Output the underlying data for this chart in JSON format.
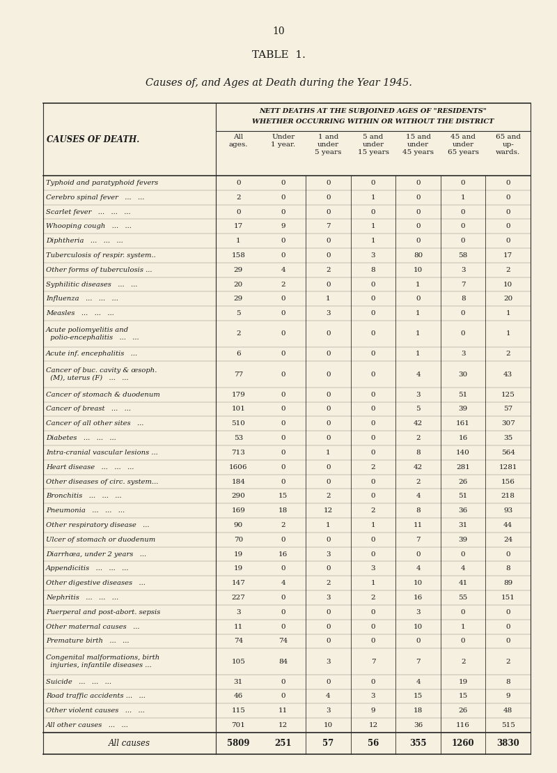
{
  "page_number": "10",
  "table_title": "TABLE  1.",
  "subtitle": "Causes of, and Ages at Death during the Year 1945.",
  "header_line1": "NETT DEATHS AT THE SUBJOINED AGES OF \"RESIDENTS\"",
  "header_line2": "WHETHER OCCURRING WITHIN OR WITHOUT THE DISTRICT",
  "col_header_main": "CAUSES OF DEATH.",
  "col_headers": [
    "All\nages.",
    "Under\n1 year.",
    "1 and\nunder\n5 years",
    "5 and\nunder\n15 years",
    "15 and\nunder\n45 years",
    "45 and\nunder\n65 years",
    "65 and\nup-\nwards."
  ],
  "rows": [
    [
      "Typhoid and paratyphoid fevers",
      "0",
      "0",
      "0",
      "0",
      "0",
      "0",
      "0"
    ],
    [
      "Cerebro spinal fever   ...   ...",
      "2",
      "0",
      "0",
      "1",
      "0",
      "1",
      "0"
    ],
    [
      "Scarlet fever   ...   ...   ...",
      "0",
      "0",
      "0",
      "0",
      "0",
      "0",
      "0"
    ],
    [
      "Whooping cough   ...   ...",
      "17",
      "9",
      "7",
      "1",
      "0",
      "0",
      "0"
    ],
    [
      "Diphtheria   ...   ...   ...",
      "1",
      "0",
      "0",
      "1",
      "0",
      "0",
      "0"
    ],
    [
      "Tuberculosis of respir. system..",
      "158",
      "0",
      "0",
      "3",
      "80",
      "58",
      "17"
    ],
    [
      "Other forms of tuberculosis ...",
      "29",
      "4",
      "2",
      "8",
      "10",
      "3",
      "2"
    ],
    [
      "Syphilitic diseases   ...   ...",
      "20",
      "2",
      "0",
      "0",
      "1",
      "7",
      "10"
    ],
    [
      "Influenza   ...   ...   ...",
      "29",
      "0",
      "1",
      "0",
      "0",
      "8",
      "20"
    ],
    [
      "Measles   ...   ...   ...",
      "5",
      "0",
      "3",
      "0",
      "1",
      "0",
      "1"
    ],
    [
      "Acute poliomyelitis and\n  polio-encephalitis   ...   ...",
      "2",
      "0",
      "0",
      "0",
      "1",
      "0",
      "1"
    ],
    [
      "Acute inf. encephalitis   ...",
      "6",
      "0",
      "0",
      "0",
      "1",
      "3",
      "2"
    ],
    [
      "Cancer of buc. cavity & œsoph.\n  (M), uterus (F)   ...   ...",
      "77",
      "0",
      "0",
      "0",
      "4",
      "30",
      "43"
    ],
    [
      "Cancer of stomach & duodenum",
      "179",
      "0",
      "0",
      "0",
      "3",
      "51",
      "125"
    ],
    [
      "Cancer of breast   ...   ...",
      "101",
      "0",
      "0",
      "0",
      "5",
      "39",
      "57"
    ],
    [
      "Cancer of all other sites   ...",
      "510",
      "0",
      "0",
      "0",
      "42",
      "161",
      "307"
    ],
    [
      "Diabetes   ...   ...   ...",
      "53",
      "0",
      "0",
      "0",
      "2",
      "16",
      "35"
    ],
    [
      "Intra-cranial vascular lesions ...",
      "713",
      "0",
      "1",
      "0",
      "8",
      "140",
      "564"
    ],
    [
      "Heart disease   ...   ...   ...",
      "1606",
      "0",
      "0",
      "2",
      "42",
      "281",
      "1281"
    ],
    [
      "Other diseases of circ. system...",
      "184",
      "0",
      "0",
      "0",
      "2",
      "26",
      "156"
    ],
    [
      "Bronchitis   ...   ...   ...",
      "290",
      "15",
      "2",
      "0",
      "4",
      "51",
      "218"
    ],
    [
      "Pneumonia   ...   ...   ...",
      "169",
      "18",
      "12",
      "2",
      "8",
      "36",
      "93"
    ],
    [
      "Other respiratory disease   ...",
      "90",
      "2",
      "1",
      "1",
      "11",
      "31",
      "44"
    ],
    [
      "Ulcer of stomach or duodenum",
      "70",
      "0",
      "0",
      "0",
      "7",
      "39",
      "24"
    ],
    [
      "Diarrhœa, under 2 years   ...",
      "19",
      "16",
      "3",
      "0",
      "0",
      "0",
      "0"
    ],
    [
      "Appendicitis   ...   ...   ...",
      "19",
      "0",
      "0",
      "3",
      "4",
      "4",
      "8"
    ],
    [
      "Other digestive diseases   ...",
      "147",
      "4",
      "2",
      "1",
      "10",
      "41",
      "89"
    ],
    [
      "Nephritis   ...   ...   ...",
      "227",
      "0",
      "3",
      "2",
      "16",
      "55",
      "151"
    ],
    [
      "Puerperal and post-abort. sepsis",
      "3",
      "0",
      "0",
      "0",
      "3",
      "0",
      "0"
    ],
    [
      "Other maternal causes   ...",
      "11",
      "0",
      "0",
      "0",
      "10",
      "1",
      "0"
    ],
    [
      "Premature birth   ...   ...",
      "74",
      "74",
      "0",
      "0",
      "0",
      "0",
      "0"
    ],
    [
      "Congenital malformations, birth\n  injuries, infantile diseases ...",
      "105",
      "84",
      "3",
      "7",
      "7",
      "2",
      "2"
    ],
    [
      "Suicide   ...   ...   ...",
      "31",
      "0",
      "0",
      "0",
      "4",
      "19",
      "8"
    ],
    [
      "Road traffic accidents ...   ...",
      "46",
      "0",
      "4",
      "3",
      "15",
      "15",
      "9"
    ],
    [
      "Other violent causes   ...   ...",
      "115",
      "11",
      "3",
      "9",
      "18",
      "26",
      "48"
    ],
    [
      "All other causes   ...   ...",
      "701",
      "12",
      "10",
      "12",
      "36",
      "116",
      "515"
    ]
  ],
  "totals_row": [
    "All causes",
    "5809",
    "251",
    "57",
    "56",
    "355",
    "1260",
    "3830"
  ],
  "bg_color": "#f5f0e0",
  "text_color": "#1a1a1a",
  "line_color": "#2a2a2a",
  "multiline_rows": [
    10,
    12,
    31
  ]
}
